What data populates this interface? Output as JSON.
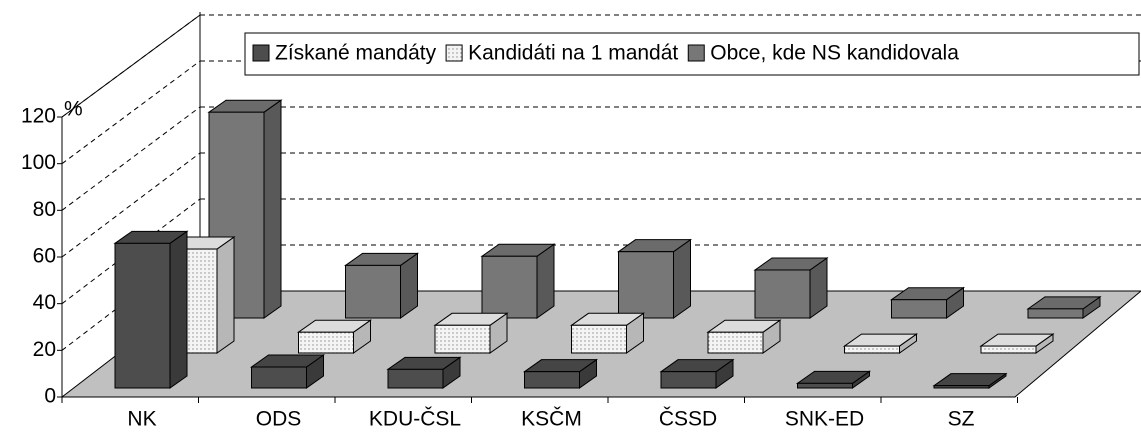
{
  "chart_data": {
    "type": "bar3d",
    "y_label": "%",
    "categories": [
      "NK",
      "ODS",
      "KDU-ČSL",
      "KSČM",
      "ČSSD",
      "SNK-ED",
      "SZ"
    ],
    "series": [
      {
        "name": "Získané mandáty",
        "color": "#4d4d4d",
        "values": [
          62,
          9,
          8,
          7,
          7,
          2,
          1
        ]
      },
      {
        "name": "Kandidáti na 1 mandát",
        "color": "#f4f4f4",
        "values": [
          45,
          9,
          12,
          12,
          9,
          3,
          3
        ]
      },
      {
        "name": "Obce, kde NS kandidovala",
        "color": "#777777",
        "values": [
          90,
          23,
          27,
          29,
          21,
          8,
          4
        ]
      }
    ],
    "ylim": [
      0,
      120
    ],
    "yticks": [
      0,
      20,
      40,
      60,
      80,
      100,
      120
    ],
    "grid": true
  }
}
